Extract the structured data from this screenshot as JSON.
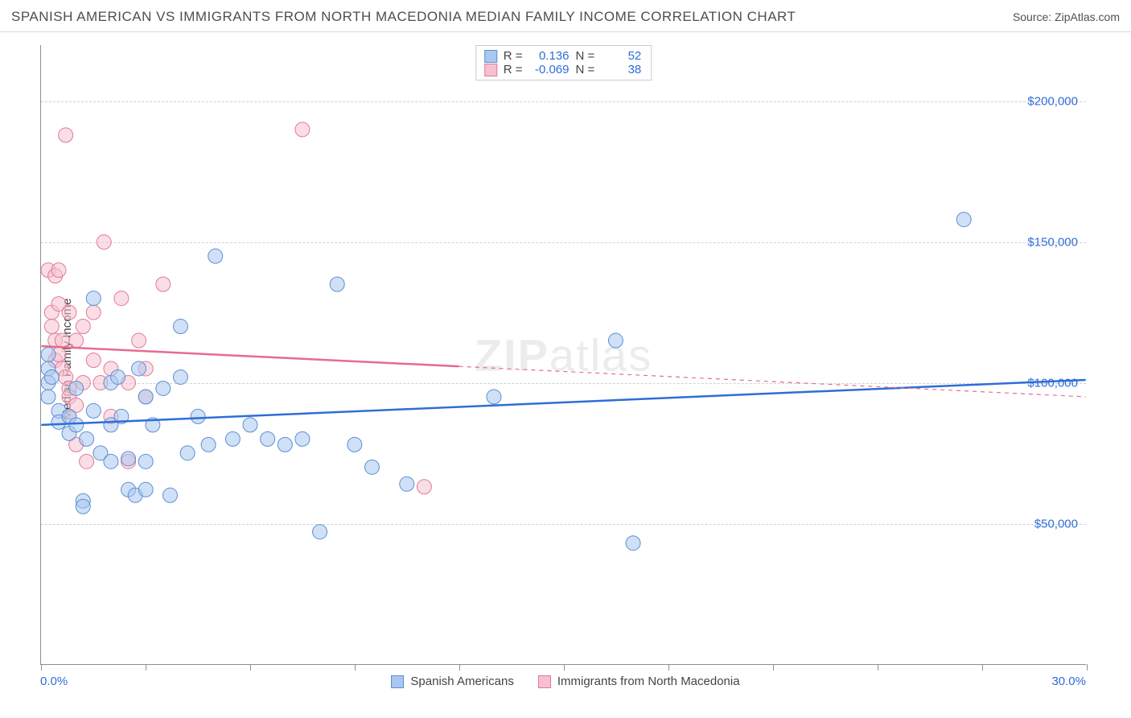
{
  "title": "SPANISH AMERICAN VS IMMIGRANTS FROM NORTH MACEDONIA MEDIAN FAMILY INCOME CORRELATION CHART",
  "source": "Source: ZipAtlas.com",
  "y_axis_label": "Median Family Income",
  "watermark_prefix": "ZIP",
  "watermark_suffix": "atlas",
  "axes": {
    "x_min": 0.0,
    "x_max": 30.0,
    "x_min_label": "0.0%",
    "x_max_label": "30.0%",
    "x_ticks": [
      0,
      3,
      6,
      9,
      12,
      15,
      18,
      21,
      24,
      27,
      30
    ],
    "y_min": 0,
    "y_max": 220000,
    "y_gridlines": [
      50000,
      100000,
      150000,
      200000
    ],
    "y_labels": [
      "$50,000",
      "$100,000",
      "$150,000",
      "$200,000"
    ]
  },
  "series": [
    {
      "name": "Spanish Americans",
      "color_fill": "#a9c7ef",
      "color_stroke": "#5b8fd6",
      "line_color": "#2e6ed6",
      "r_value": "0.136",
      "n_value": "52",
      "trend": {
        "x1": 0,
        "y1": 85000,
        "x2": 30,
        "y2": 101000,
        "solid_until_x": 30
      },
      "points": [
        [
          0.2,
          110000
        ],
        [
          0.2,
          105000
        ],
        [
          0.2,
          100000
        ],
        [
          0.2,
          95000
        ],
        [
          0.3,
          102000
        ],
        [
          0.5,
          90000
        ],
        [
          0.5,
          86000
        ],
        [
          0.8,
          88000
        ],
        [
          0.8,
          82000
        ],
        [
          1.0,
          98000
        ],
        [
          1.0,
          85000
        ],
        [
          1.2,
          58000
        ],
        [
          1.2,
          56000
        ],
        [
          1.3,
          80000
        ],
        [
          1.5,
          130000
        ],
        [
          1.5,
          90000
        ],
        [
          1.7,
          75000
        ],
        [
          2.0,
          100000
        ],
        [
          2.0,
          85000
        ],
        [
          2.0,
          72000
        ],
        [
          2.2,
          102000
        ],
        [
          2.3,
          88000
        ],
        [
          2.5,
          73000
        ],
        [
          2.5,
          62000
        ],
        [
          2.7,
          60000
        ],
        [
          2.8,
          105000
        ],
        [
          3.0,
          95000
        ],
        [
          3.0,
          72000
        ],
        [
          3.0,
          62000
        ],
        [
          3.2,
          85000
        ],
        [
          3.5,
          98000
        ],
        [
          3.7,
          60000
        ],
        [
          4.0,
          120000
        ],
        [
          4.2,
          75000
        ],
        [
          4.5,
          88000
        ],
        [
          4.8,
          78000
        ],
        [
          5.0,
          145000
        ],
        [
          5.5,
          80000
        ],
        [
          6.0,
          85000
        ],
        [
          6.5,
          80000
        ],
        [
          7.0,
          78000
        ],
        [
          7.5,
          80000
        ],
        [
          8.0,
          47000
        ],
        [
          8.5,
          135000
        ],
        [
          9.0,
          78000
        ],
        [
          9.5,
          70000
        ],
        [
          10.5,
          64000
        ],
        [
          13.0,
          95000
        ],
        [
          16.5,
          115000
        ],
        [
          17.0,
          43000
        ],
        [
          26.5,
          158000
        ],
        [
          4.0,
          102000
        ]
      ]
    },
    {
      "name": "Immigrants from North Macedonia",
      "color_fill": "#f5c1cf",
      "color_stroke": "#e07a97",
      "line_color": "#e86b8d",
      "r_value": "-0.069",
      "n_value": "38",
      "trend": {
        "x1": 0,
        "y1": 113000,
        "x2": 30,
        "y2": 95000,
        "solid_until_x": 12
      },
      "points": [
        [
          0.2,
          140000
        ],
        [
          0.3,
          125000
        ],
        [
          0.3,
          120000
        ],
        [
          0.4,
          138000
        ],
        [
          0.4,
          115000
        ],
        [
          0.4,
          108000
        ],
        [
          0.5,
          140000
        ],
        [
          0.5,
          128000
        ],
        [
          0.5,
          110000
        ],
        [
          0.6,
          115000
        ],
        [
          0.6,
          105000
        ],
        [
          0.7,
          188000
        ],
        [
          0.7,
          102000
        ],
        [
          0.8,
          125000
        ],
        [
          0.8,
          98000
        ],
        [
          0.8,
          95000
        ],
        [
          0.8,
          88000
        ],
        [
          1.0,
          92000
        ],
        [
          1.0,
          78000
        ],
        [
          1.2,
          120000
        ],
        [
          1.2,
          100000
        ],
        [
          1.3,
          72000
        ],
        [
          1.5,
          125000
        ],
        [
          1.5,
          108000
        ],
        [
          1.7,
          100000
        ],
        [
          1.8,
          150000
        ],
        [
          2.0,
          88000
        ],
        [
          2.0,
          105000
        ],
        [
          2.3,
          130000
        ],
        [
          2.5,
          100000
        ],
        [
          2.5,
          72000
        ],
        [
          2.8,
          115000
        ],
        [
          3.0,
          95000
        ],
        [
          3.0,
          105000
        ],
        [
          3.5,
          135000
        ],
        [
          7.5,
          190000
        ],
        [
          11.0,
          63000
        ],
        [
          1.0,
          115000
        ]
      ]
    }
  ],
  "legend": {
    "r_label": "R =",
    "n_label": "N ="
  },
  "style": {
    "marker_radius": 9,
    "marker_opacity": 0.55,
    "line_width_solid": 2.5,
    "line_width_dash": 1.2,
    "background": "#ffffff",
    "dash_pattern": "5,5"
  }
}
